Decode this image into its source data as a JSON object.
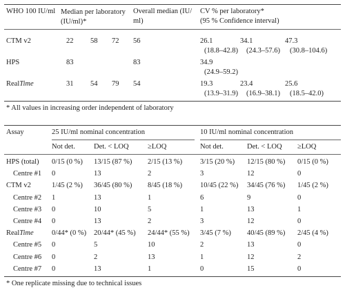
{
  "table1": {
    "headers": {
      "standard": "WHO 100 IU/ml",
      "median_line1": "Median per laboratory (IU/ml)*",
      "overall_line1": "Overall median (IU/",
      "overall_line2": "ml)",
      "cv_line1": "CV % per laboratory*",
      "cv_line2": "(95 % Confidence interval)"
    },
    "rows": [
      {
        "assay": "CTM v2",
        "medians": [
          "22",
          "58",
          "72"
        ],
        "overall": "56",
        "cv": [
          "26.1",
          "34.1",
          "47.3"
        ],
        "ci": [
          "(18.8–42.8)",
          "(24.3–57.6)",
          "(30.8–104.6)"
        ]
      },
      {
        "assay": "HPS",
        "medians": [
          "83",
          "",
          ""
        ],
        "overall": "83",
        "cv": [
          "34.9",
          "",
          ""
        ],
        "ci": [
          "(24.9–59.2)",
          "",
          ""
        ]
      },
      {
        "assay_prefix": "Real",
        "assay_italic": "Time",
        "medians": [
          "31",
          "54",
          "79"
        ],
        "overall": "54",
        "cv": [
          "19.3",
          "23.4",
          "25.6"
        ],
        "ci": [
          "(13.9–31.9)",
          "(16.9–38.1)",
          "(18.5–42.0)"
        ]
      }
    ],
    "footnote": "* All values in increasing order independent of laboratory"
  },
  "table2": {
    "headers": {
      "assay": "Assay",
      "group25": "25 IU/ml nominal concentration",
      "group10": "10 IU/ml nominal concentration",
      "sub": [
        "Not det.",
        "Det. < LOQ",
        "≥LOQ",
        "Not det.",
        "Det. < LOQ",
        "≥LOQ"
      ]
    },
    "rows": [
      {
        "label": "HPS (total)",
        "values": [
          "0/15 (0 %)",
          "13/15 (87 %)",
          "2/15 (13 %)",
          "3/15 (20 %)",
          "12/15 (80 %)",
          "0/15 (0 %)"
        ]
      },
      {
        "label": "Centre #1",
        "values": [
          "0",
          "13",
          "2",
          "3",
          "12",
          "0"
        ]
      },
      {
        "label": "CTM v2",
        "values": [
          "1/45 (2 %)",
          "36/45 (80 %)",
          "8/45 (18 %)",
          "10/45 (22 %)",
          "34/45 (76 %)",
          "1/45 (2 %)"
        ]
      },
      {
        "label": "Centre #2",
        "values": [
          "1",
          "13",
          "1",
          "6",
          "9",
          "0"
        ]
      },
      {
        "label": "Centre #3",
        "values": [
          "0",
          "10",
          "5",
          "1",
          "13",
          "1"
        ]
      },
      {
        "label": "Centre #4",
        "values": [
          "0",
          "13",
          "2",
          "3",
          "12",
          "0"
        ]
      },
      {
        "label_prefix": "Real",
        "label_italic": "Time",
        "values": [
          "0/44* (0 %)",
          "20/44* (45 %)",
          "24/44* (55 %)",
          "3/45 (7 %)",
          "40/45 (89 %)",
          "2/45 (4 %)"
        ]
      },
      {
        "label": "Centre #5",
        "values": [
          "0",
          "5",
          "10",
          "2",
          "13",
          "0"
        ]
      },
      {
        "label": "Centre #6",
        "values": [
          "0",
          "2",
          "13",
          "1",
          "12",
          "2"
        ]
      },
      {
        "label": "Centre #7",
        "values": [
          "0",
          "13",
          "1",
          "0",
          "15",
          "0"
        ]
      }
    ],
    "footnote": "* One replicate missing due to technical issues"
  }
}
